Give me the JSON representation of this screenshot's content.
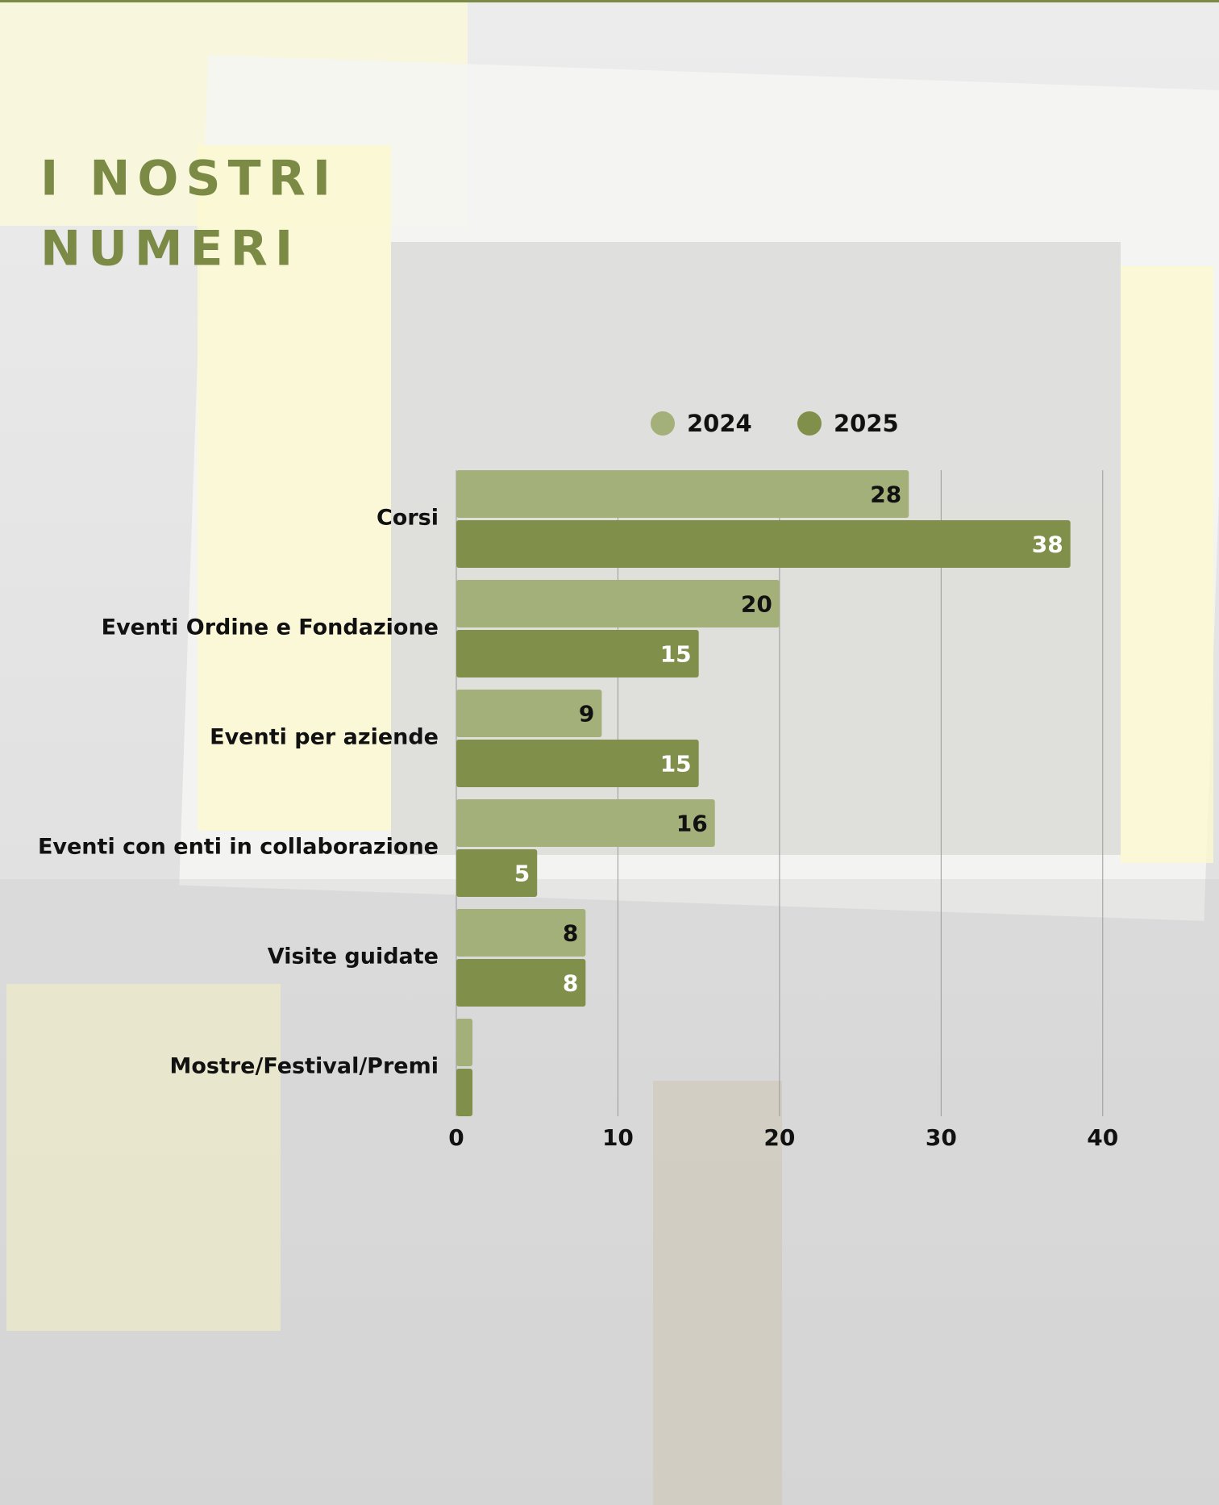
{
  "chart_data": {
    "type": "bar",
    "orientation": "horizontal",
    "title_lines": [
      "I NOSTRI",
      "NUMERI"
    ],
    "categories": [
      "Corsi",
      "Eventi Ordine e Fondazione",
      "Eventi per aziende",
      "Eventi con enti in collaborazione",
      "Visite guidate",
      "Mostre/Festival/Premi"
    ],
    "series": [
      {
        "name": "2024",
        "color": "#a3b07a",
        "values": [
          28,
          20,
          9,
          16,
          8,
          1
        ]
      },
      {
        "name": "2025",
        "color": "#80904a",
        "values": [
          38,
          15,
          15,
          5,
          8,
          1
        ]
      }
    ],
    "xlim": [
      0,
      45
    ],
    "xticks": [
      0,
      10,
      20,
      30,
      40
    ],
    "grid": true,
    "legend": "top"
  }
}
